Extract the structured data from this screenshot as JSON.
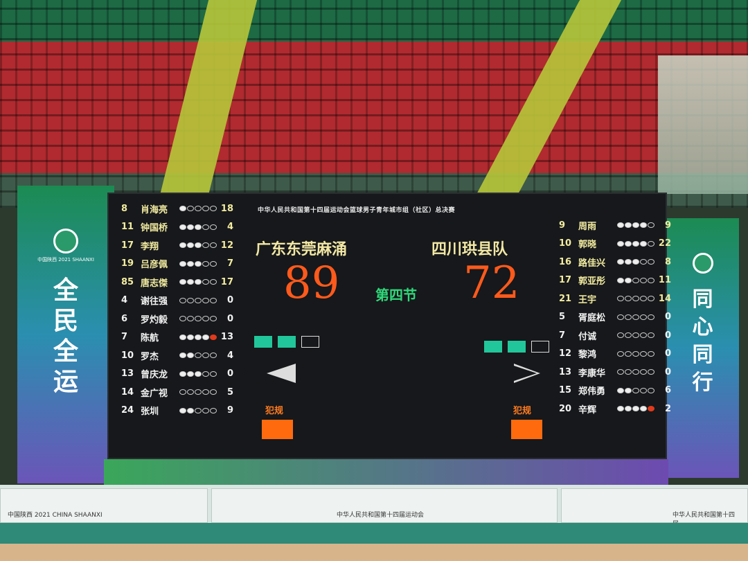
{
  "banners": {
    "left_logo_text": "中国陕西 2021 SHAANXI",
    "left_slogan": "全民全运",
    "right_slogan": "同心同行"
  },
  "board": {
    "header": "中华人民共和国第十四届运动会篮球男子青年城市组（社区）总决赛",
    "home": {
      "name": "广东东莞麻涌",
      "score": "89",
      "timeouts_used": 2,
      "timeouts_total": 3,
      "players": [
        {
          "num": "8",
          "name": "肖海亮",
          "fouls": 1,
          "pts": "18",
          "on_court": true
        },
        {
          "num": "11",
          "name": "钟国桥",
          "fouls": 3,
          "pts": "4",
          "on_court": true
        },
        {
          "num": "17",
          "name": "李翔",
          "fouls": 3,
          "pts": "12",
          "on_court": true
        },
        {
          "num": "19",
          "name": "吕彦佩",
          "fouls": 3,
          "pts": "7",
          "on_court": true
        },
        {
          "num": "85",
          "name": "唐志傑",
          "fouls": 3,
          "pts": "17",
          "on_court": true
        },
        {
          "num": "4",
          "name": "谢往强",
          "fouls": 0,
          "pts": "0",
          "on_court": false
        },
        {
          "num": "6",
          "name": "罗灼毅",
          "fouls": 0,
          "pts": "0",
          "on_court": false
        },
        {
          "num": "7",
          "name": "陈航",
          "fouls": 5,
          "pts": "13",
          "on_court": false
        },
        {
          "num": "10",
          "name": "罗杰",
          "fouls": 2,
          "pts": "4",
          "on_court": false
        },
        {
          "num": "13",
          "name": "曾庆龙",
          "fouls": 3,
          "pts": "0",
          "on_court": false
        },
        {
          "num": "14",
          "name": "金广视",
          "fouls": 0,
          "pts": "5",
          "on_court": false
        },
        {
          "num": "24",
          "name": "张圳",
          "fouls": 2,
          "pts": "9",
          "on_court": false
        }
      ]
    },
    "away": {
      "name": "四川珙县队",
      "score": "72",
      "timeouts_used": 2,
      "timeouts_total": 3,
      "players": [
        {
          "num": "9",
          "name": "周雨",
          "fouls": 4,
          "pts": "9",
          "on_court": true
        },
        {
          "num": "10",
          "name": "郭晓",
          "fouls": 4,
          "pts": "22",
          "on_court": true
        },
        {
          "num": "16",
          "name": "路佳兴",
          "fouls": 3,
          "pts": "8",
          "on_court": true
        },
        {
          "num": "17",
          "name": "郭亚彤",
          "fouls": 2,
          "pts": "11",
          "on_court": true
        },
        {
          "num": "21",
          "name": "王宇",
          "fouls": 0,
          "pts": "14",
          "on_court": true
        },
        {
          "num": "5",
          "name": "胥庭松",
          "fouls": 0,
          "pts": "0",
          "on_court": false
        },
        {
          "num": "7",
          "name": "付诚",
          "fouls": 0,
          "pts": "0",
          "on_court": false
        },
        {
          "num": "12",
          "name": "黎鸿",
          "fouls": 0,
          "pts": "0",
          "on_court": false
        },
        {
          "num": "13",
          "name": "李康华",
          "fouls": 0,
          "pts": "0",
          "on_court": false
        },
        {
          "num": "15",
          "name": "郑伟勇",
          "fouls": 2,
          "pts": "6",
          "on_court": false
        },
        {
          "num": "20",
          "name": "辛辉",
          "fouls": 5,
          "pts": "2",
          "on_court": false
        }
      ]
    },
    "period": "第四节",
    "foul_label": "犯规",
    "possession": "both-arrows"
  },
  "stage": {
    "left_text": "中国陕西 2021 CHINA SHAANXI",
    "mid_text": "中华人民共和国第十四届运动会",
    "right_text": "中华人民共和国第十四届"
  },
  "colors": {
    "score": "#ff5a1c",
    "period": "#2fd97a",
    "team": "#f3e8a4",
    "timeout": "#21c79b",
    "foul_box": "#ff6a0e"
  }
}
